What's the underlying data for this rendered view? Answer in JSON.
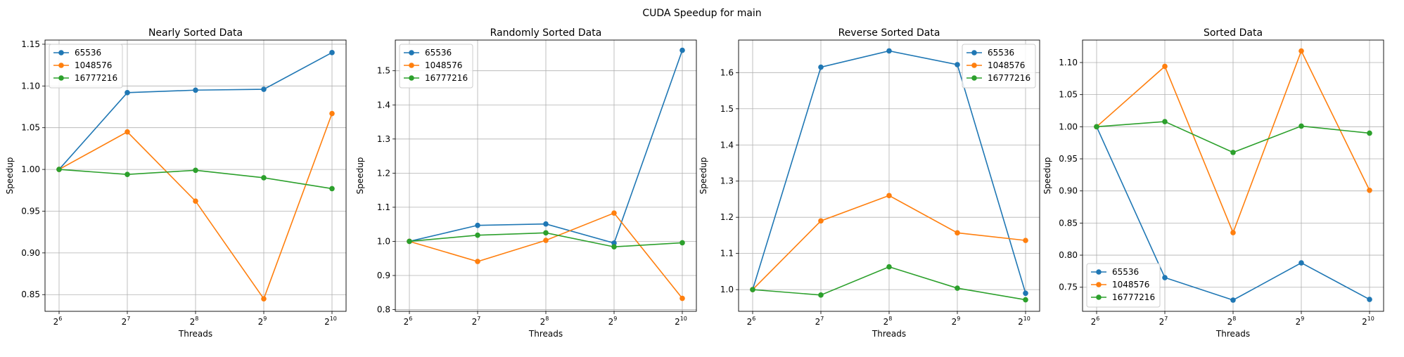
{
  "figure": {
    "suptitle": "CUDA Speedup for main"
  },
  "colors": {
    "65536": "#1f77b4",
    "1048576": "#ff7f0e",
    "16777216": "#2ca02c",
    "grid": "#b0b0b0"
  },
  "chart_data": [
    {
      "type": "line",
      "title": "Nearly Sorted Data",
      "xlabel": "Threads",
      "ylabel": "Speedup",
      "x": [
        64,
        128,
        256,
        512,
        1024
      ],
      "xscale": "log2",
      "x_tick_labels": [
        {
          "base": "2",
          "exp": "6"
        },
        {
          "base": "2",
          "exp": "7"
        },
        {
          "base": "2",
          "exp": "8"
        },
        {
          "base": "2",
          "exp": "9"
        },
        {
          "base": "2",
          "exp": "10"
        }
      ],
      "ylim": [
        0.83,
        1.155
      ],
      "yticks": [
        "0.85",
        "0.90",
        "0.95",
        "1.00",
        "1.05",
        "1.10",
        "1.15"
      ],
      "grid": true,
      "legend": "upper left",
      "series": [
        {
          "name": "65536",
          "values": [
            1.0,
            1.092,
            1.095,
            1.096,
            1.14
          ]
        },
        {
          "name": "1048576",
          "values": [
            1.0,
            1.045,
            0.962,
            0.845,
            1.067
          ]
        },
        {
          "name": "16777216",
          "values": [
            1.0,
            0.994,
            0.999,
            0.99,
            0.977
          ]
        }
      ]
    },
    {
      "type": "line",
      "title": "Randomly Sorted Data",
      "xlabel": "Threads",
      "ylabel": "Speedup",
      "x": [
        64,
        128,
        256,
        512,
        1024
      ],
      "xscale": "log2",
      "x_tick_labels": [
        {
          "base": "2",
          "exp": "6"
        },
        {
          "base": "2",
          "exp": "7"
        },
        {
          "base": "2",
          "exp": "8"
        },
        {
          "base": "2",
          "exp": "9"
        },
        {
          "base": "2",
          "exp": "10"
        }
      ],
      "ylim": [
        0.795,
        1.59
      ],
      "yticks": [
        "0.8",
        "0.9",
        "1.0",
        "1.1",
        "1.2",
        "1.3",
        "1.4",
        "1.5"
      ],
      "grid": true,
      "legend": "upper left",
      "series": [
        {
          "name": "65536",
          "values": [
            1.0,
            1.047,
            1.051,
            0.995,
            1.56
          ]
        },
        {
          "name": "1048576",
          "values": [
            1.0,
            0.941,
            1.003,
            1.083,
            0.833
          ]
        },
        {
          "name": "16777216",
          "values": [
            1.0,
            1.018,
            1.025,
            0.984,
            0.996
          ]
        }
      ]
    },
    {
      "type": "line",
      "title": "Reverse Sorted Data",
      "xlabel": "Threads",
      "ylabel": "Speedup",
      "x": [
        64,
        128,
        256,
        512,
        1024
      ],
      "xscale": "log2",
      "x_tick_labels": [
        {
          "base": "2",
          "exp": "6"
        },
        {
          "base": "2",
          "exp": "7"
        },
        {
          "base": "2",
          "exp": "8"
        },
        {
          "base": "2",
          "exp": "9"
        },
        {
          "base": "2",
          "exp": "10"
        }
      ],
      "ylim": [
        0.94,
        1.69
      ],
      "yticks": [
        "1.0",
        "1.1",
        "1.2",
        "1.3",
        "1.4",
        "1.5",
        "1.6"
      ],
      "grid": true,
      "legend": "upper right",
      "series": [
        {
          "name": "65536",
          "values": [
            1.0,
            1.615,
            1.66,
            1.622,
            0.99
          ]
        },
        {
          "name": "1048576",
          "values": [
            1.0,
            1.19,
            1.26,
            1.157,
            1.136
          ]
        },
        {
          "name": "16777216",
          "values": [
            1.0,
            0.985,
            1.063,
            1.004,
            0.972
          ]
        }
      ]
    },
    {
      "type": "line",
      "title": "Sorted Data",
      "xlabel": "Threads",
      "ylabel": "Speedup",
      "x": [
        64,
        128,
        256,
        512,
        1024
      ],
      "xscale": "log2",
      "x_tick_labels": [
        {
          "base": "2",
          "exp": "6"
        },
        {
          "base": "2",
          "exp": "7"
        },
        {
          "base": "2",
          "exp": "8"
        },
        {
          "base": "2",
          "exp": "9"
        },
        {
          "base": "2",
          "exp": "10"
        }
      ],
      "ylim": [
        0.7125,
        1.135
      ],
      "yticks": [
        "0.75",
        "0.80",
        "0.85",
        "0.90",
        "0.95",
        "1.00",
        "1.05",
        "1.10"
      ],
      "grid": true,
      "legend": "lower left",
      "series": [
        {
          "name": "65536",
          "values": [
            1.0,
            0.765,
            0.73,
            0.788,
            0.731
          ]
        },
        {
          "name": "1048576",
          "values": [
            1.0,
            1.094,
            0.835,
            1.118,
            0.901
          ]
        },
        {
          "name": "16777216",
          "values": [
            1.0,
            1.008,
            0.96,
            1.001,
            0.99
          ]
        }
      ]
    }
  ]
}
